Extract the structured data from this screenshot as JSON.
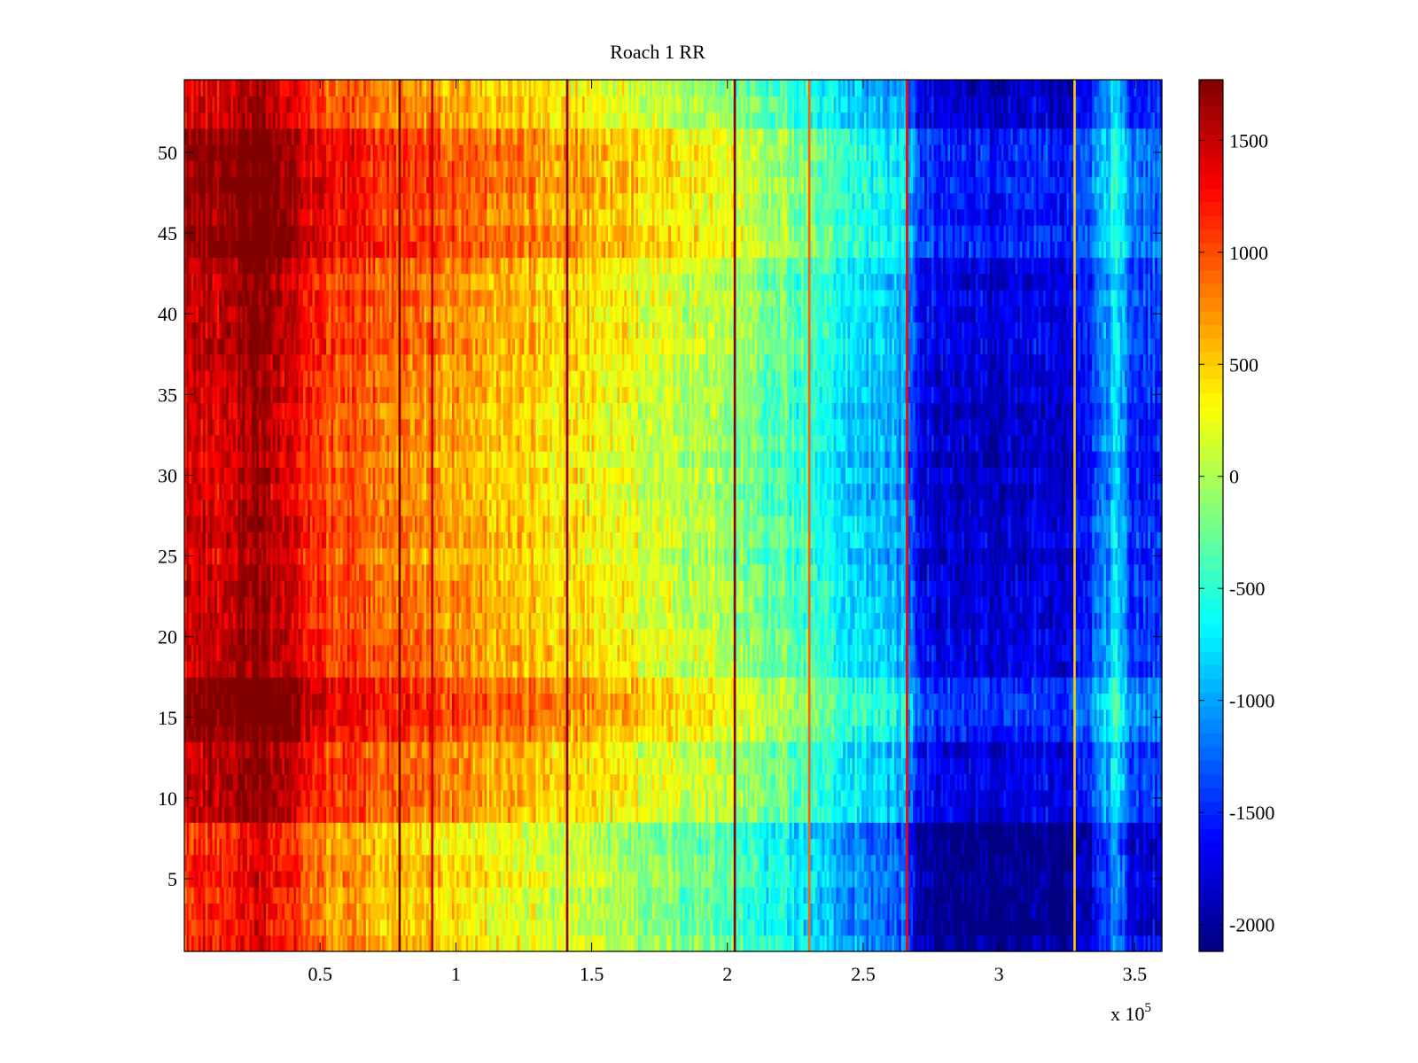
{
  "chart_data": {
    "type": "heatmap",
    "title": "Roach 1 RR",
    "xlabel": "",
    "ylabel": "",
    "x_range": [
      0,
      360000
    ],
    "y_range": [
      0.5,
      54.5
    ],
    "x_multiplier_label": "x 10",
    "x_multiplier_exponent": "5",
    "x_ticks": [
      {
        "value": 50000,
        "label": "0.5"
      },
      {
        "value": 100000,
        "label": "1"
      },
      {
        "value": 150000,
        "label": "1.5"
      },
      {
        "value": 200000,
        "label": "2"
      },
      {
        "value": 250000,
        "label": "2.5"
      },
      {
        "value": 300000,
        "label": "3"
      },
      {
        "value": 350000,
        "label": "3.5"
      }
    ],
    "y_ticks": [
      {
        "value": 5,
        "label": "5"
      },
      {
        "value": 10,
        "label": "10"
      },
      {
        "value": 15,
        "label": "15"
      },
      {
        "value": 20,
        "label": "20"
      },
      {
        "value": 25,
        "label": "25"
      },
      {
        "value": 30,
        "label": "30"
      },
      {
        "value": 35,
        "label": "35"
      },
      {
        "value": 40,
        "label": "40"
      },
      {
        "value": 45,
        "label": "45"
      },
      {
        "value": 50,
        "label": "50"
      }
    ],
    "rows": 54,
    "colorbar": {
      "colormap": "jet",
      "range": [
        -2120,
        1770
      ],
      "ticks": [
        {
          "value": 1500,
          "label": "1500"
        },
        {
          "value": 1000,
          "label": "1000"
        },
        {
          "value": 500,
          "label": "500"
        },
        {
          "value": 0,
          "label": "0"
        },
        {
          "value": -500,
          "label": "-500"
        },
        {
          "value": -1000,
          "label": "-1000"
        },
        {
          "value": -1500,
          "label": "-1500"
        },
        {
          "value": -2000,
          "label": "-2000"
        }
      ]
    },
    "column_profile": [
      {
        "x": 0,
        "value": 1400
      },
      {
        "x": 15000,
        "value": 1450
      },
      {
        "x": 27000,
        "value": 1700
      },
      {
        "x": 38000,
        "value": 1400
      },
      {
        "x": 50000,
        "value": 1050
      },
      {
        "x": 80000,
        "value": 800
      },
      {
        "x": 100000,
        "value": 650
      },
      {
        "x": 150000,
        "value": 300
      },
      {
        "x": 200000,
        "value": -100
      },
      {
        "x": 230000,
        "value": -500
      },
      {
        "x": 245000,
        "value": -850
      },
      {
        "x": 265000,
        "value": -1000
      },
      {
        "x": 272000,
        "value": -1750
      },
      {
        "x": 300000,
        "value": -1900
      },
      {
        "x": 330000,
        "value": -1750
      },
      {
        "x": 344000,
        "value": -800
      },
      {
        "x": 348000,
        "value": -1500
      },
      {
        "x": 360000,
        "value": -1500
      }
    ],
    "stripes": [
      {
        "x": 79000,
        "value": 1750
      },
      {
        "x": 91000,
        "value": 1500
      },
      {
        "x": 141000,
        "value": 1750
      },
      {
        "x": 203000,
        "value": 1750
      },
      {
        "x": 230000,
        "value": 900
      },
      {
        "x": 266000,
        "value": 1300
      },
      {
        "x": 328000,
        "value": 500
      }
    ],
    "row_offsets": [
      {
        "rows": [
          1,
          8
        ],
        "offset": -250
      },
      {
        "rows": [
          9,
          13
        ],
        "offset": 100
      },
      {
        "rows": [
          14,
          17
        ],
        "offset": 350
      },
      {
        "rows": [
          18,
          22
        ],
        "offset": 100
      },
      {
        "rows": [
          23,
          36
        ],
        "offset": 0
      },
      {
        "rows": [
          37,
          43
        ],
        "offset": 100
      },
      {
        "rows": [
          44,
          51
        ],
        "offset": 300
      },
      {
        "rows": [
          52,
          54
        ],
        "offset": 0
      }
    ]
  }
}
